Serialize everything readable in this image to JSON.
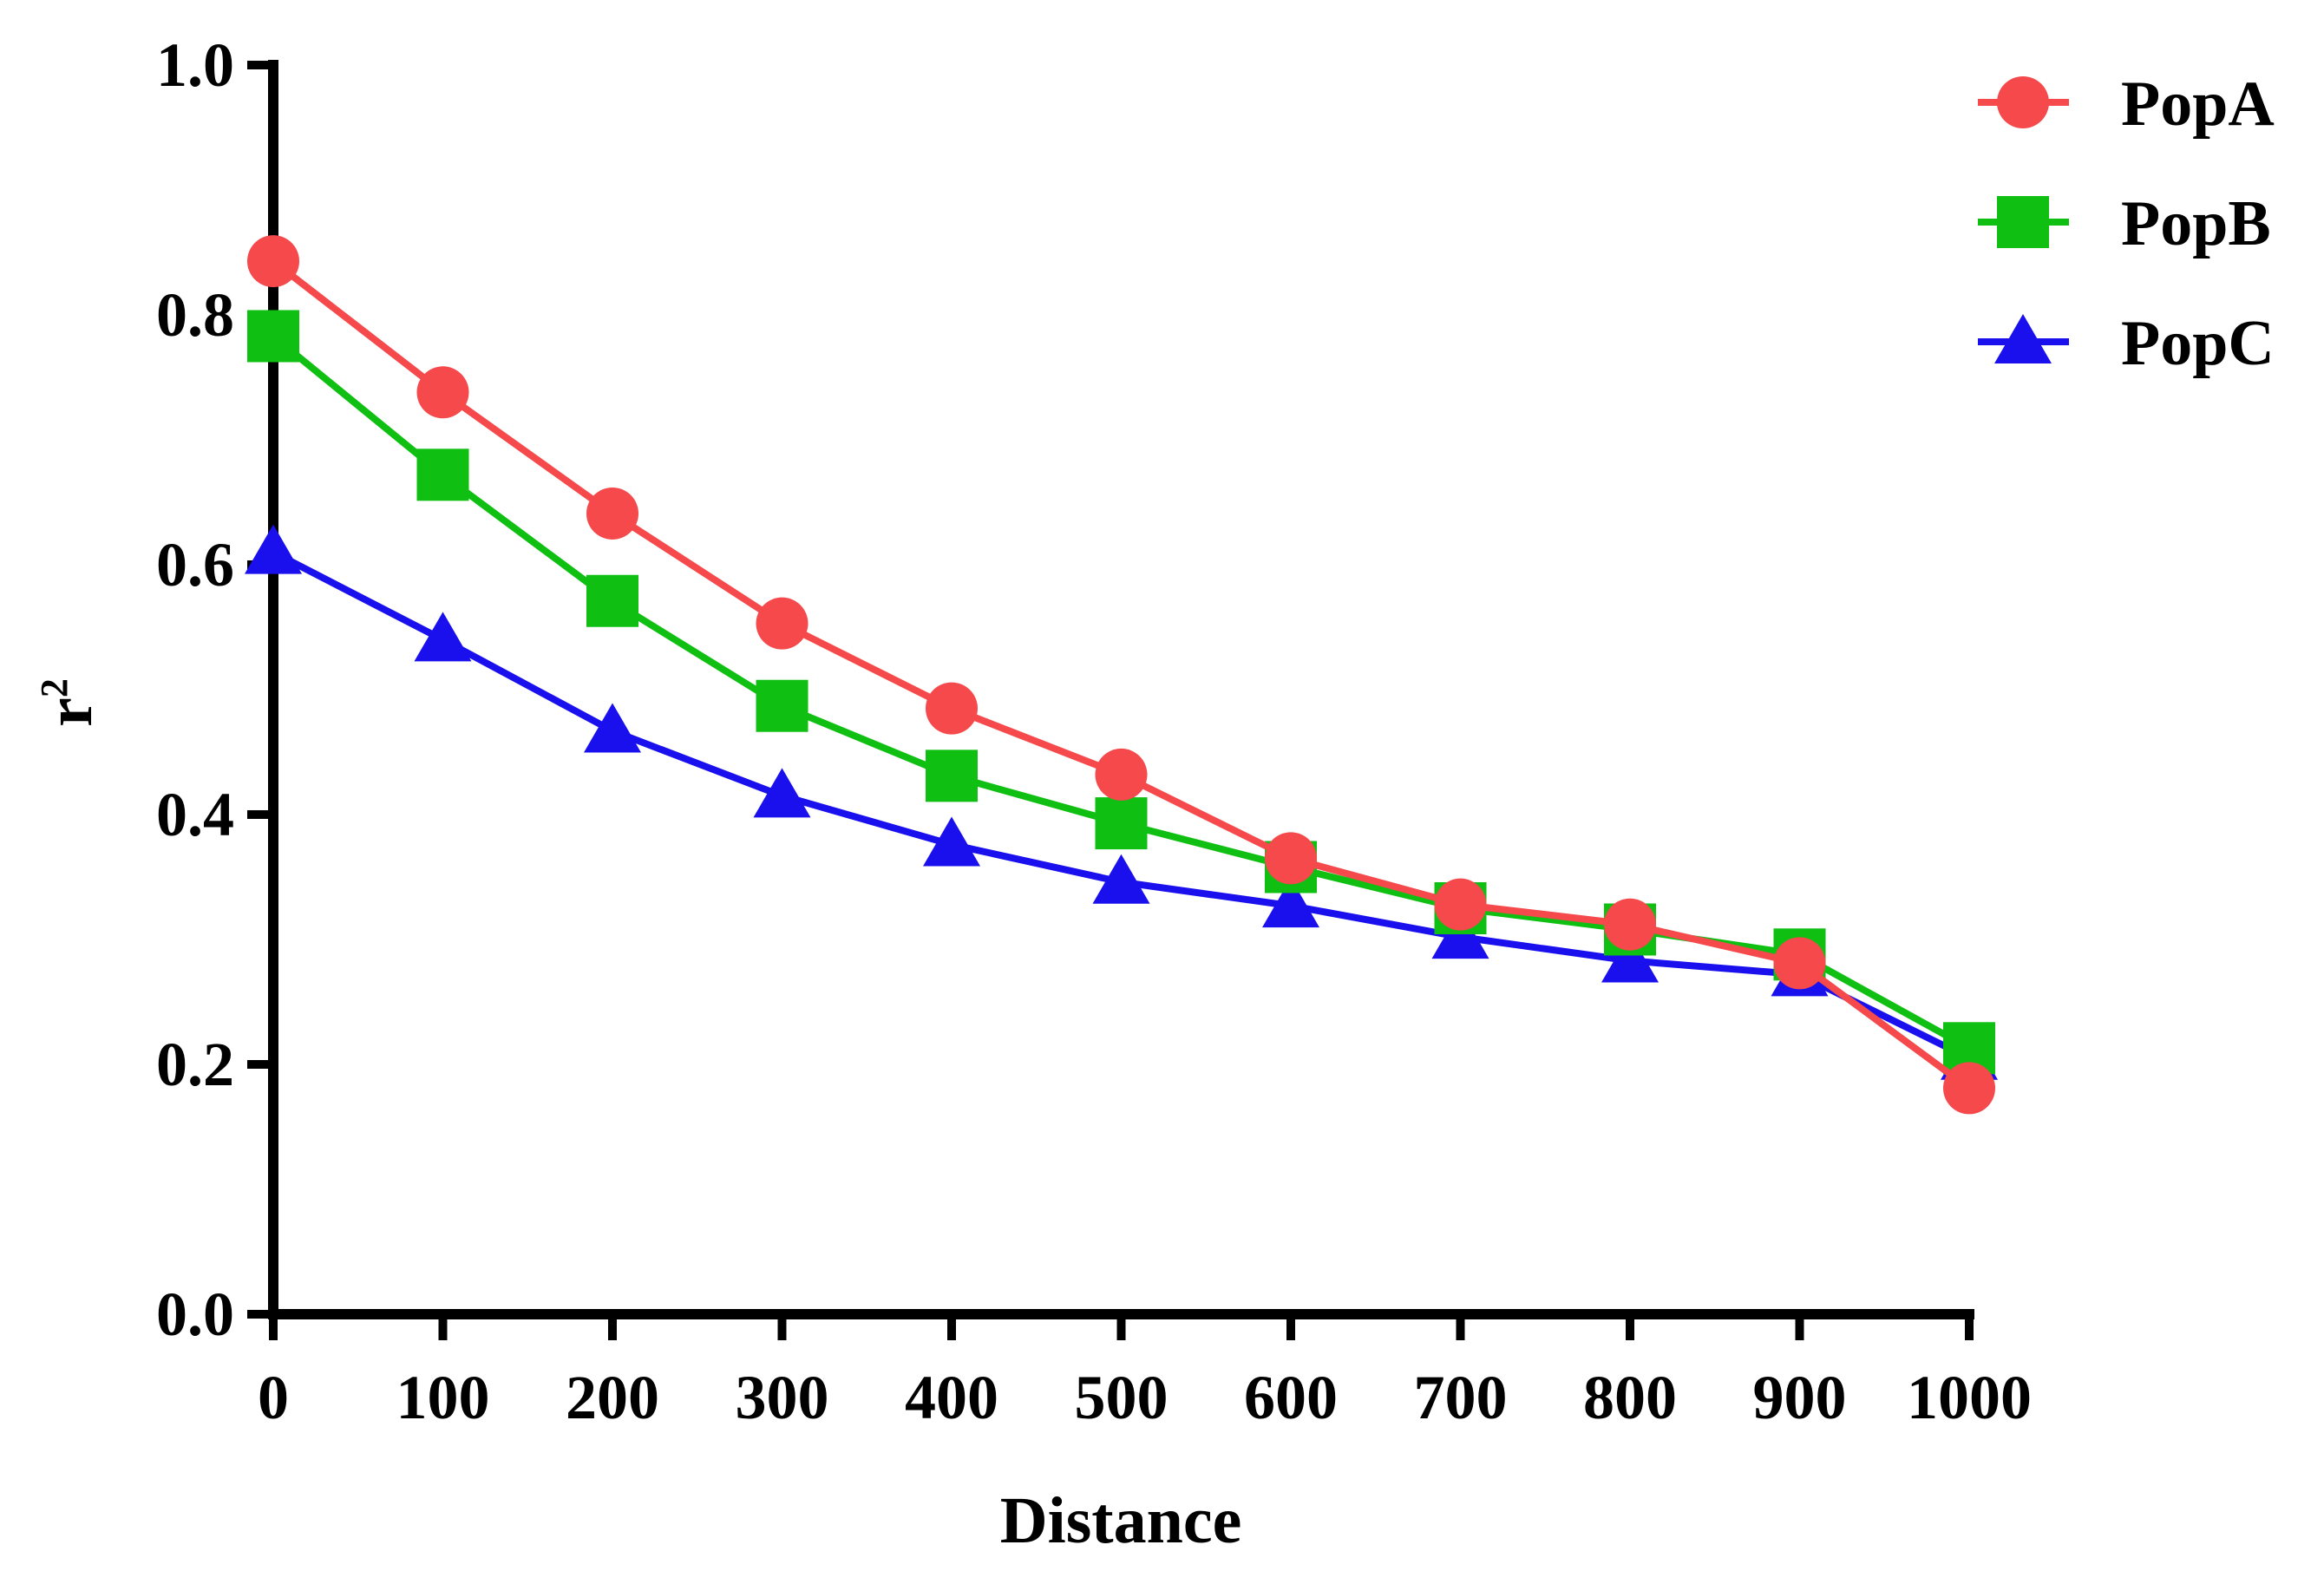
{
  "chart_data": {
    "type": "line",
    "title": "",
    "xlabel": "Distance",
    "ylabel": "r²",
    "ylabel_base": "r",
    "ylabel_sup": "2",
    "x": [
      0,
      100,
      200,
      300,
      400,
      500,
      600,
      700,
      800,
      900,
      1000
    ],
    "x_tick_labels": [
      "0",
      "100",
      "200",
      "300",
      "400",
      "500",
      "600",
      "700",
      "800",
      "900",
      "1000"
    ],
    "y_tick_labels": [
      "0.0",
      "0.2",
      "0.4",
      "0.6",
      "0.8",
      "1.0"
    ],
    "y_ticks": [
      0.0,
      0.2,
      0.4,
      0.6,
      0.8,
      1.0
    ],
    "xlim": [
      0,
      1000
    ],
    "ylim": [
      0,
      1.0
    ],
    "grid": false,
    "legend_position": "top-right",
    "series": [
      {
        "name": "PopA",
        "marker": "circle",
        "color": "#f5494c",
        "values": [
          0.843,
          0.738,
          0.641,
          0.553,
          0.485,
          0.432,
          0.365,
          0.328,
          0.312,
          0.281,
          0.181
        ]
      },
      {
        "name": "PopB",
        "marker": "square",
        "color": "#0fbf12",
        "values": [
          0.783,
          0.672,
          0.571,
          0.487,
          0.431,
          0.393,
          0.358,
          0.325,
          0.308,
          0.288,
          0.213
        ]
      },
      {
        "name": "PopC",
        "marker": "triangle",
        "color": "#1a10ee",
        "values": [
          0.61,
          0.54,
          0.467,
          0.415,
          0.376,
          0.346,
          0.327,
          0.302,
          0.283,
          0.272,
          0.205
        ]
      }
    ]
  }
}
